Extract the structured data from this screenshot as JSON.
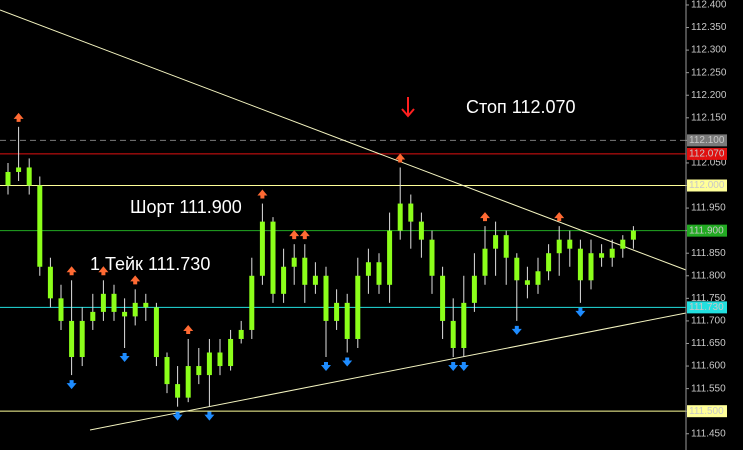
{
  "chart_data": {
    "type": "candlestick",
    "categories": [
      null,
      null,
      null,
      null,
      null,
      null,
      null,
      null,
      null,
      null,
      null,
      null,
      null,
      null,
      null,
      null,
      null,
      null,
      null,
      null,
      null,
      null,
      null,
      null,
      null,
      null,
      null,
      null,
      null,
      null,
      null,
      null,
      null,
      null,
      null,
      null,
      null,
      null,
      null,
      null,
      null,
      null,
      null,
      null,
      null,
      null,
      null,
      null,
      null,
      null,
      null,
      null,
      null,
      null,
      null,
      null,
      null,
      null,
      null,
      null
    ],
    "open": [
      112.0,
      112.03,
      112.04,
      112.0,
      111.82,
      111.75,
      111.7,
      111.62,
      111.7,
      111.72,
      111.76,
      111.72,
      111.71,
      111.74,
      111.73,
      111.62,
      111.56,
      111.53,
      111.6,
      111.58,
      111.63,
      111.6,
      111.66,
      111.68,
      111.8,
      111.92,
      111.76,
      111.82,
      111.84,
      111.78,
      111.8,
      111.7,
      111.74,
      111.66,
      111.8,
      111.83,
      111.78,
      111.9,
      111.96,
      111.92,
      111.88,
      111.8,
      111.7,
      111.64,
      111.74,
      111.8,
      111.86,
      111.89,
      111.84,
      111.79,
      111.78,
      111.81,
      111.85,
      111.88,
      111.86,
      111.79,
      111.85,
      111.84,
      111.86,
      111.88
    ],
    "high": [
      112.05,
      112.13,
      112.06,
      112.02,
      111.84,
      111.78,
      111.79,
      111.73,
      111.76,
      111.79,
      111.78,
      111.75,
      111.77,
      111.76,
      111.74,
      111.63,
      111.6,
      111.66,
      111.64,
      111.66,
      111.66,
      111.68,
      111.7,
      111.84,
      111.96,
      111.93,
      111.86,
      111.87,
      111.87,
      111.83,
      111.82,
      111.77,
      111.76,
      111.84,
      111.86,
      111.85,
      111.94,
      112.04,
      111.98,
      111.94,
      111.9,
      111.82,
      111.75,
      111.8,
      111.85,
      111.91,
      111.92,
      111.9,
      111.85,
      111.82,
      111.84,
      111.87,
      111.91,
      111.9,
      111.88,
      111.88,
      111.87,
      111.88,
      111.89,
      111.91
    ],
    "low": [
      111.98,
      112.01,
      111.98,
      111.8,
      111.73,
      111.68,
      111.58,
      111.6,
      111.68,
      111.7,
      111.7,
      111.64,
      111.69,
      111.7,
      111.6,
      111.54,
      111.51,
      111.52,
      111.56,
      111.51,
      111.58,
      111.59,
      111.65,
      111.66,
      111.78,
      111.74,
      111.74,
      111.78,
      111.74,
      111.76,
      111.62,
      111.68,
      111.63,
      111.64,
      111.76,
      111.76,
      111.74,
      111.88,
      111.86,
      111.84,
      111.76,
      111.66,
      111.62,
      111.62,
      111.72,
      111.78,
      111.8,
      111.78,
      111.7,
      111.75,
      111.76,
      111.79,
      111.8,
      111.82,
      111.74,
      111.77,
      111.82,
      111.82,
      111.84,
      111.86
    ],
    "close": [
      112.03,
      112.04,
      112.0,
      111.82,
      111.75,
      111.7,
      111.62,
      111.7,
      111.72,
      111.76,
      111.72,
      111.71,
      111.74,
      111.73,
      111.62,
      111.56,
      111.53,
      111.6,
      111.58,
      111.63,
      111.6,
      111.66,
      111.68,
      111.8,
      111.92,
      111.76,
      111.82,
      111.84,
      111.78,
      111.8,
      111.7,
      111.74,
      111.66,
      111.8,
      111.83,
      111.78,
      111.9,
      111.96,
      111.92,
      111.88,
      111.8,
      111.7,
      111.64,
      111.74,
      111.8,
      111.86,
      111.89,
      111.84,
      111.79,
      111.78,
      111.81,
      111.85,
      111.88,
      111.86,
      111.79,
      111.85,
      111.84,
      111.86,
      111.88,
      111.9
    ],
    "color": "#8cff1a",
    "wick_color": "#e0e0e0",
    "fractal_up": [
      1,
      6,
      9,
      12,
      17,
      24,
      27,
      28,
      37,
      45,
      52
    ],
    "fractal_up_color": "#ff6a33",
    "fractal_down": [
      6,
      11,
      16,
      19,
      30,
      32,
      42,
      43,
      48,
      54
    ],
    "fractal_down_color": "#1e8cff",
    "ylim": [
      111.414,
      112.411
    ],
    "yticks": [
      {
        "value": 112.4,
        "label": "112.400"
      },
      {
        "value": 112.35,
        "label": "112.350"
      },
      {
        "value": 112.3,
        "label": "112.300"
      },
      {
        "value": 112.25,
        "label": "112.250"
      },
      {
        "value": 112.2,
        "label": "112.200"
      },
      {
        "value": 112.15,
        "label": "112.150"
      },
      {
        "value": 112.1,
        "label": "112.100"
      },
      {
        "value": 112.05,
        "label": "112.050"
      },
      {
        "value": 112.0,
        "label": "112.000"
      },
      {
        "value": 111.95,
        "label": "111.950"
      },
      {
        "value": 111.9,
        "label": "111.900"
      },
      {
        "value": 111.85,
        "label": "111.850"
      },
      {
        "value": 111.8,
        "label": "111.800"
      },
      {
        "value": 111.75,
        "label": "111.750"
      },
      {
        "value": 111.7,
        "label": "111.700"
      },
      {
        "value": 111.65,
        "label": "111.650"
      },
      {
        "value": 111.6,
        "label": "111.600"
      },
      {
        "value": 111.55,
        "label": "111.550"
      },
      {
        "value": 111.5,
        "label": "111.500"
      },
      {
        "value": 111.45,
        "label": "111.450"
      }
    ],
    "levels": [
      {
        "value": 112.1,
        "label": "112.100",
        "color": "#7a7a7a",
        "label_color": "#000000",
        "style": "dashed"
      },
      {
        "value": 112.07,
        "label": "112.070",
        "color": "#e01010",
        "label_color": "#ffffff",
        "style": "solid"
      },
      {
        "value": 112.0,
        "label": "112.000",
        "color": "#ffff99",
        "label_color": "#000000",
        "style": "solid"
      },
      {
        "value": 111.9,
        "label": "111.900",
        "color": "#22aa22",
        "label_color": "#000000",
        "style": "solid"
      },
      {
        "value": 111.73,
        "label": "111.730",
        "color": "#22e0e0",
        "label_color": "#000000",
        "style": "solid"
      },
      {
        "value": 111.5,
        "label": "111.500",
        "color": "#ffff99",
        "label_color": "#000000",
        "style": "solid"
      }
    ],
    "annotations": [
      "Стоп 112.070",
      "Шорт 111.900",
      "1 Тейк 111.730"
    ]
  }
}
